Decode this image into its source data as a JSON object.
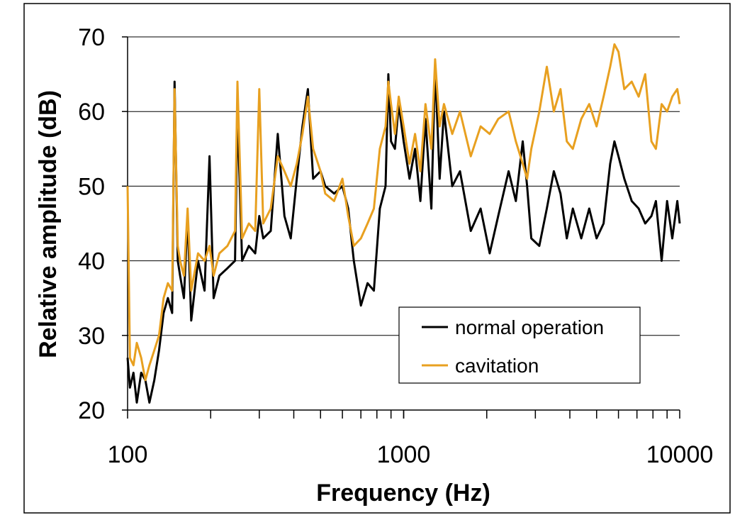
{
  "chart_data": {
    "type": "line",
    "title": "",
    "xlabel": "Frequency (Hz)",
    "ylabel": "Relative amplitude (dB)",
    "x_scale": "log",
    "xlim": [
      100,
      10000
    ],
    "ylim": [
      20,
      70
    ],
    "x_ticks": [
      100,
      1000,
      10000
    ],
    "x_tick_labels": [
      "100",
      "1000",
      "10000"
    ],
    "y_ticks": [
      20,
      30,
      40,
      50,
      60,
      70
    ],
    "y_tick_labels": [
      "20",
      "30",
      "40",
      "50",
      "60",
      "70"
    ],
    "grid": "horizontal",
    "legend": "bottom-right inside plot",
    "series": [
      {
        "name": "normal operation",
        "color": "#000000",
        "x": [
          100,
          102,
          105,
          108,
          112,
          116,
          120,
          125,
          130,
          135,
          140,
          145,
          148,
          152,
          155,
          160,
          165,
          170,
          180,
          190,
          198,
          205,
          215,
          230,
          245,
          250,
          260,
          275,
          290,
          300,
          310,
          330,
          350,
          370,
          390,
          410,
          430,
          450,
          470,
          500,
          520,
          560,
          600,
          630,
          660,
          700,
          740,
          780,
          820,
          860,
          880,
          900,
          930,
          960,
          1000,
          1050,
          1100,
          1150,
          1200,
          1260,
          1300,
          1350,
          1400,
          1500,
          1600,
          1750,
          1900,
          2050,
          2200,
          2400,
          2550,
          2700,
          2800,
          2900,
          3100,
          3300,
          3500,
          3700,
          3900,
          4100,
          4400,
          4700,
          5000,
          5300,
          5600,
          5800,
          6000,
          6300,
          6700,
          7100,
          7500,
          7900,
          8200,
          8600,
          9000,
          9400,
          9800,
          10000
        ],
        "values": [
          27,
          23,
          25,
          21,
          25,
          24,
          21,
          24,
          28,
          33,
          35,
          33,
          64,
          40,
          38,
          35,
          46,
          32,
          40,
          36,
          54,
          35,
          38,
          39,
          40,
          60,
          40,
          42,
          41,
          46,
          43,
          44,
          57,
          46,
          43,
          51,
          58,
          63,
          51,
          52,
          50,
          49,
          50,
          47,
          40,
          34,
          37,
          36,
          47,
          50,
          65,
          56,
          55,
          61,
          56,
          51,
          55,
          48,
          59,
          47,
          66,
          51,
          60,
          50,
          52,
          44,
          47,
          41,
          46,
          52,
          48,
          56,
          50,
          43,
          42,
          47,
          52,
          49,
          43,
          47,
          43,
          47,
          43,
          45,
          53,
          56,
          54,
          51,
          48,
          47,
          45,
          46,
          48,
          40,
          48,
          43,
          48,
          45
        ]
      },
      {
        "name": "cavitation",
        "color": "#E8A020",
        "x": [
          100,
          102,
          105,
          108,
          112,
          116,
          120,
          125,
          130,
          135,
          140,
          145,
          148,
          152,
          155,
          160,
          165,
          170,
          180,
          190,
          198,
          205,
          215,
          230,
          245,
          250,
          260,
          275,
          290,
          300,
          310,
          330,
          350,
          370,
          390,
          410,
          430,
          450,
          470,
          500,
          520,
          560,
          600,
          630,
          660,
          700,
          740,
          780,
          820,
          860,
          880,
          900,
          930,
          960,
          1000,
          1050,
          1100,
          1150,
          1200,
          1260,
          1300,
          1350,
          1400,
          1500,
          1600,
          1750,
          1900,
          2050,
          2200,
          2400,
          2550,
          2700,
          2800,
          2900,
          3100,
          3300,
          3500,
          3700,
          3900,
          4100,
          4400,
          4700,
          5000,
          5300,
          5600,
          5800,
          6000,
          6300,
          6700,
          7100,
          7500,
          7900,
          8200,
          8600,
          9000,
          9400,
          9800,
          10000
        ],
        "values": [
          50,
          27,
          26,
          29,
          27,
          24,
          26,
          28,
          30,
          35,
          37,
          36,
          63,
          42,
          40,
          38,
          47,
          36,
          41,
          40,
          42,
          38,
          41,
          42,
          44,
          64,
          43,
          45,
          44,
          63,
          45,
          47,
          54,
          52,
          50,
          53,
          57,
          62,
          55,
          52,
          49,
          48,
          51,
          46,
          42,
          43,
          45,
          47,
          55,
          58,
          64,
          61,
          57,
          62,
          58,
          53,
          57,
          52,
          61,
          55,
          67,
          58,
          61,
          57,
          60,
          54,
          58,
          57,
          59,
          60,
          56,
          53,
          51,
          55,
          60,
          66,
          60,
          63,
          56,
          55,
          59,
          61,
          58,
          62,
          66,
          69,
          68,
          63,
          64,
          62,
          65,
          56,
          55,
          61,
          60,
          62,
          63,
          61
        ]
      }
    ]
  }
}
